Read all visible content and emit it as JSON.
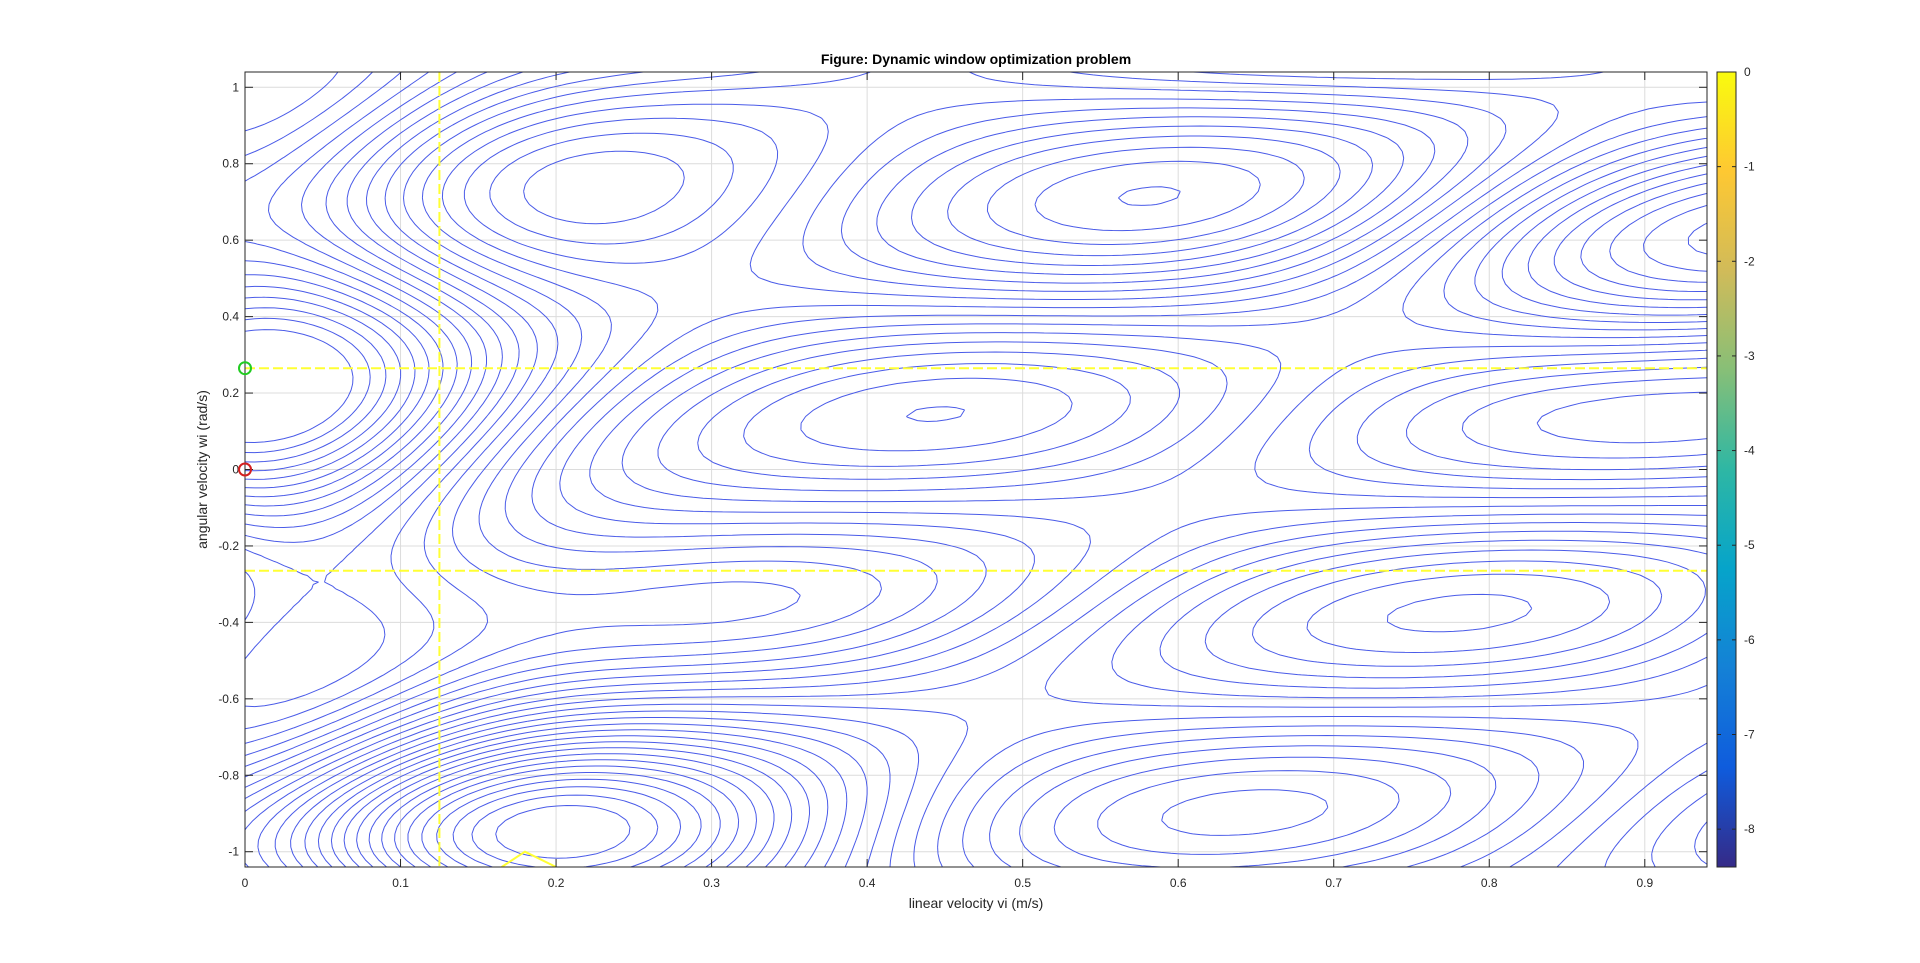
{
  "chart_data": {
    "type": "contour",
    "title": "Figure: Dynamic window optimization problem",
    "xlabel": "linear velocity vi (m/s)",
    "ylabel": "angular velocity wi (rad/s)",
    "xlim": [
      0,
      0.94
    ],
    "ylim": [
      -1.04,
      1.04
    ],
    "xticks": [
      0,
      0.1,
      0.2,
      0.3,
      0.4,
      0.5,
      0.6,
      0.7,
      0.8,
      0.9
    ],
    "xtick_labels": [
      "0",
      "0.1",
      "0.2",
      "0.3",
      "0.4",
      "0.5",
      "0.6",
      "0.7",
      "0.8",
      "0.9"
    ],
    "yticks": [
      -1,
      -0.8,
      -0.6,
      -0.4,
      -0.2,
      0,
      0.2,
      0.4,
      0.6,
      0.8,
      1
    ],
    "ytick_labels": [
      "-1",
      "-0.8",
      "-0.6",
      "-0.4",
      "-0.2",
      "0",
      "0.2",
      "0.4",
      "0.6",
      "0.8",
      "1"
    ],
    "grid": true,
    "contour_color": "#4a5be8",
    "contour_levels": {
      "min": -8.4,
      "max": -0.1,
      "step": 0.22
    },
    "saddle_points": [
      [
        0.34,
        0.55
      ],
      [
        0.68,
        -0.85
      ]
    ],
    "peaks": [
      [
        0.93,
        0.55
      ],
      [
        0.18,
        -1.0
      ]
    ],
    "window_lines": {
      "color": "#ffff33",
      "v_max": 0.125,
      "w_max": 0.265,
      "w_min": -0.265
    },
    "markers": [
      {
        "name": "current",
        "x": 0,
        "y": 0,
        "color": "#d42020"
      },
      {
        "name": "optimal",
        "x": 0,
        "y": 0.265,
        "color": "#22cc22"
      }
    ],
    "colorbar": {
      "min": -8.4,
      "max": 0,
      "ticks": [
        0,
        -1,
        -2,
        -3,
        -4,
        -5,
        -6,
        -7,
        -8
      ],
      "tick_labels": [
        "0",
        "-1",
        "-2",
        "-3",
        "-4",
        "-5",
        "-6",
        "-7",
        "-8"
      ],
      "colors": [
        "#352a87",
        "#0f5cdd",
        "#1481d6",
        "#06a4ca",
        "#2eb7a4",
        "#87bf77",
        "#d1bb59",
        "#fec832",
        "#f9fb0e"
      ]
    }
  }
}
